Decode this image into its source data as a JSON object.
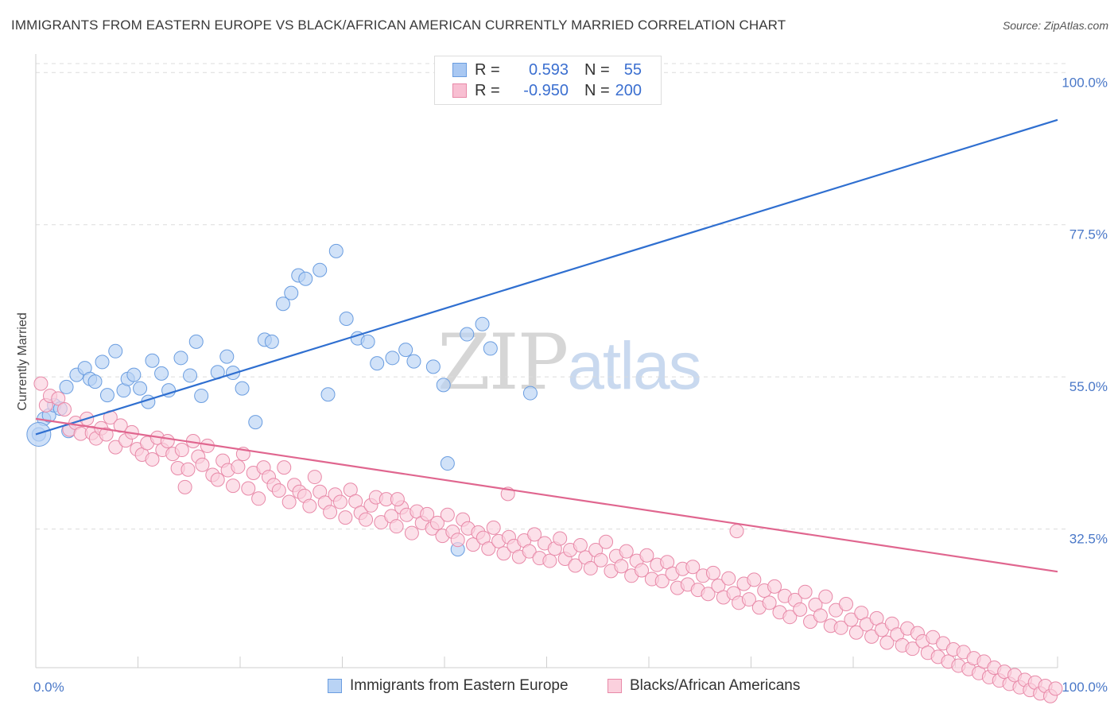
{
  "header": {
    "title": "IMMIGRANTS FROM EASTERN EUROPE VS BLACK/AFRICAN AMERICAN CURRENTLY MARRIED CORRELATION CHART",
    "source": "Source: ZipAtlas.com"
  },
  "watermark": {
    "part1": "ZIP",
    "part2": "atlas"
  },
  "legend_top": {
    "rows": [
      {
        "r_label": "R =",
        "r_value": "0.593",
        "n_label": "N =",
        "n_value": "55",
        "color": "#a9c8f2",
        "border": "#6a9de0"
      },
      {
        "r_label": "R =",
        "r_value": "-0.950",
        "n_label": "N =",
        "n_value": "200",
        "color": "#f8bfd2",
        "border": "#e889a8"
      }
    ]
  },
  "legend_bottom": {
    "items": [
      {
        "label": "Immigrants from Eastern Europe",
        "color": "#b9d3f5",
        "border": "#6a9de0"
      },
      {
        "label": "Blacks/African Americans",
        "color": "#fbd0dd",
        "border": "#e889a8"
      }
    ]
  },
  "chart_data": {
    "type": "scatter",
    "title": "IMMIGRANTS FROM EASTERN EUROPE VS BLACK/AFRICAN AMERICAN CURRENTLY MARRIED CORRELATION CHART",
    "xlabel": "",
    "ylabel": "Currently Married",
    "xlim": [
      0,
      100
    ],
    "ylim": [
      12,
      102.5
    ],
    "x_ticks": [
      "0.0%",
      "100.0%"
    ],
    "y_ticks": [
      {
        "value": 100.0,
        "label": "100.0%"
      },
      {
        "value": 77.5,
        "label": "77.5%"
      },
      {
        "value": 55.0,
        "label": "55.0%"
      },
      {
        "value": 32.5,
        "label": "32.5%"
      }
    ],
    "grid": true,
    "legend_position": "top-center",
    "series": [
      {
        "name": "Immigrants from Eastern Europe",
        "color": "#6a9de0",
        "fill": "#b9d3f5",
        "trend": {
          "x": [
            0,
            100
          ],
          "y": [
            46.5,
            93.0
          ],
          "color": "#2f6fd0"
        },
        "points": [
          [
            0.3,
            46.5
          ],
          [
            0.8,
            48.8
          ],
          [
            1.3,
            49.3
          ],
          [
            1.8,
            50.8
          ],
          [
            2.4,
            50.3
          ],
          [
            3.0,
            53.5
          ],
          [
            3.2,
            47.0
          ],
          [
            4.0,
            55.3
          ],
          [
            4.8,
            56.3
          ],
          [
            5.3,
            54.7
          ],
          [
            5.8,
            54.3
          ],
          [
            6.5,
            57.2
          ],
          [
            7.0,
            52.3
          ],
          [
            7.8,
            58.8
          ],
          [
            8.6,
            53.0
          ],
          [
            9.0,
            54.7
          ],
          [
            9.6,
            55.3
          ],
          [
            10.2,
            53.3
          ],
          [
            11.0,
            51.3
          ],
          [
            11.4,
            57.4
          ],
          [
            12.3,
            55.5
          ],
          [
            13.0,
            53.0
          ],
          [
            14.2,
            57.8
          ],
          [
            15.1,
            55.2
          ],
          [
            15.7,
            60.2
          ],
          [
            16.2,
            52.2
          ],
          [
            17.8,
            55.7
          ],
          [
            18.7,
            58.0
          ],
          [
            19.3,
            55.6
          ],
          [
            20.2,
            53.3
          ],
          [
            21.5,
            48.3
          ],
          [
            22.4,
            60.5
          ],
          [
            23.1,
            60.2
          ],
          [
            24.2,
            65.8
          ],
          [
            25.0,
            67.4
          ],
          [
            25.7,
            70.0
          ],
          [
            26.4,
            69.5
          ],
          [
            27.8,
            70.8
          ],
          [
            28.6,
            52.4
          ],
          [
            29.4,
            73.6
          ],
          [
            30.4,
            63.6
          ],
          [
            31.5,
            60.7
          ],
          [
            32.5,
            60.2
          ],
          [
            33.4,
            57.0
          ],
          [
            34.9,
            57.8
          ],
          [
            36.2,
            59.0
          ],
          [
            37.0,
            57.3
          ],
          [
            38.9,
            56.5
          ],
          [
            39.9,
            53.8
          ],
          [
            40.3,
            42.2
          ],
          [
            41.3,
            29.5
          ],
          [
            42.2,
            61.3
          ],
          [
            43.7,
            62.8
          ],
          [
            44.5,
            59.2
          ],
          [
            48.4,
            52.6
          ]
        ]
      },
      {
        "name": "Blacks/African Americans",
        "color": "#e889a8",
        "fill": "#fbd0dd",
        "trend": {
          "x": [
            0,
            100
          ],
          "y": [
            48.8,
            26.2
          ],
          "color": "#e0668f"
        },
        "points": [
          [
            0.5,
            54.0
          ],
          [
            1.0,
            50.8
          ],
          [
            1.4,
            52.2
          ],
          [
            2.2,
            51.8
          ],
          [
            2.8,
            50.2
          ],
          [
            3.3,
            47.2
          ],
          [
            3.9,
            48.2
          ],
          [
            4.4,
            46.6
          ],
          [
            5.0,
            48.8
          ],
          [
            5.5,
            46.7
          ],
          [
            5.9,
            45.9
          ],
          [
            6.4,
            47.4
          ],
          [
            6.9,
            46.5
          ],
          [
            7.3,
            49.0
          ],
          [
            7.8,
            44.6
          ],
          [
            8.3,
            47.8
          ],
          [
            8.8,
            45.6
          ],
          [
            9.4,
            46.8
          ],
          [
            9.9,
            44.3
          ],
          [
            10.4,
            43.5
          ],
          [
            10.9,
            45.2
          ],
          [
            11.4,
            42.8
          ],
          [
            11.9,
            46.0
          ],
          [
            12.4,
            44.2
          ],
          [
            12.9,
            45.5
          ],
          [
            13.4,
            43.6
          ],
          [
            13.9,
            41.5
          ],
          [
            14.3,
            44.2
          ],
          [
            14.9,
            41.3
          ],
          [
            15.4,
            45.5
          ],
          [
            15.9,
            43.2
          ],
          [
            16.3,
            42.0
          ],
          [
            16.8,
            44.8
          ],
          [
            17.3,
            40.5
          ],
          [
            17.8,
            39.8
          ],
          [
            18.3,
            42.6
          ],
          [
            18.8,
            41.2
          ],
          [
            19.3,
            38.9
          ],
          [
            19.8,
            41.7
          ],
          [
            20.3,
            43.6
          ],
          [
            20.8,
            38.5
          ],
          [
            21.3,
            40.8
          ],
          [
            21.8,
            37.0
          ],
          [
            22.3,
            41.6
          ],
          [
            22.8,
            40.2
          ],
          [
            23.3,
            39.0
          ],
          [
            23.8,
            38.2
          ],
          [
            24.3,
            41.6
          ],
          [
            24.8,
            36.5
          ],
          [
            25.3,
            39.0
          ],
          [
            25.8,
            38.0
          ],
          [
            26.3,
            37.4
          ],
          [
            26.8,
            35.9
          ],
          [
            27.3,
            40.2
          ],
          [
            27.8,
            38.0
          ],
          [
            28.3,
            36.4
          ],
          [
            28.8,
            35.0
          ],
          [
            29.3,
            37.6
          ],
          [
            29.8,
            36.5
          ],
          [
            30.3,
            34.2
          ],
          [
            30.8,
            38.3
          ],
          [
            31.3,
            36.6
          ],
          [
            31.8,
            34.9
          ],
          [
            32.3,
            33.9
          ],
          [
            32.8,
            36.0
          ],
          [
            33.3,
            37.2
          ],
          [
            33.8,
            33.5
          ],
          [
            34.3,
            36.9
          ],
          [
            34.8,
            34.4
          ],
          [
            35.3,
            32.9
          ],
          [
            35.8,
            35.7
          ],
          [
            36.3,
            34.6
          ],
          [
            36.8,
            31.9
          ],
          [
            37.3,
            35.1
          ],
          [
            37.8,
            33.4
          ],
          [
            38.3,
            34.7
          ],
          [
            38.8,
            32.6
          ],
          [
            39.3,
            33.4
          ],
          [
            39.8,
            31.5
          ],
          [
            40.3,
            34.6
          ],
          [
            40.8,
            32.1
          ],
          [
            41.3,
            30.9
          ],
          [
            41.8,
            33.9
          ],
          [
            42.3,
            32.6
          ],
          [
            42.8,
            30.2
          ],
          [
            43.3,
            32.0
          ],
          [
            43.8,
            31.2
          ],
          [
            44.3,
            29.6
          ],
          [
            44.8,
            32.7
          ],
          [
            45.3,
            30.7
          ],
          [
            45.8,
            28.9
          ],
          [
            46.3,
            31.3
          ],
          [
            46.8,
            30.0
          ],
          [
            47.3,
            28.4
          ],
          [
            47.8,
            30.8
          ],
          [
            48.3,
            29.2
          ],
          [
            48.8,
            31.7
          ],
          [
            49.3,
            28.2
          ],
          [
            49.8,
            30.4
          ],
          [
            50.3,
            27.8
          ],
          [
            50.8,
            29.6
          ],
          [
            51.3,
            31.1
          ],
          [
            51.8,
            28.1
          ],
          [
            52.3,
            29.4
          ],
          [
            52.8,
            27.1
          ],
          [
            53.3,
            30.1
          ],
          [
            53.8,
            28.3
          ],
          [
            54.3,
            26.7
          ],
          [
            54.8,
            29.4
          ],
          [
            55.3,
            27.9
          ],
          [
            55.8,
            30.6
          ],
          [
            56.3,
            26.3
          ],
          [
            56.8,
            28.5
          ],
          [
            57.3,
            27.0
          ],
          [
            57.8,
            29.2
          ],
          [
            58.3,
            25.6
          ],
          [
            58.8,
            27.8
          ],
          [
            59.3,
            26.4
          ],
          [
            59.8,
            28.6
          ],
          [
            60.3,
            25.1
          ],
          [
            60.8,
            27.2
          ],
          [
            61.3,
            24.8
          ],
          [
            61.8,
            27.6
          ],
          [
            62.3,
            25.9
          ],
          [
            62.8,
            23.8
          ],
          [
            63.3,
            26.6
          ],
          [
            63.8,
            24.3
          ],
          [
            64.3,
            26.9
          ],
          [
            64.8,
            23.5
          ],
          [
            65.3,
            25.6
          ],
          [
            65.8,
            22.9
          ],
          [
            66.3,
            26.0
          ],
          [
            66.8,
            24.1
          ],
          [
            67.3,
            22.4
          ],
          [
            67.8,
            25.2
          ],
          [
            68.3,
            23.0
          ],
          [
            68.8,
            21.6
          ],
          [
            69.3,
            24.4
          ],
          [
            69.8,
            22.1
          ],
          [
            70.3,
            25.0
          ],
          [
            70.8,
            20.9
          ],
          [
            71.3,
            23.4
          ],
          [
            71.8,
            21.6
          ],
          [
            72.3,
            24.0
          ],
          [
            72.8,
            20.2
          ],
          [
            73.3,
            22.6
          ],
          [
            73.8,
            19.5
          ],
          [
            74.3,
            22.0
          ],
          [
            74.8,
            20.6
          ],
          [
            75.3,
            23.2
          ],
          [
            75.8,
            18.8
          ],
          [
            76.3,
            21.3
          ],
          [
            76.8,
            19.7
          ],
          [
            77.3,
            22.5
          ],
          [
            77.8,
            18.2
          ],
          [
            78.3,
            20.5
          ],
          [
            78.8,
            17.9
          ],
          [
            79.3,
            21.4
          ],
          [
            79.8,
            19.1
          ],
          [
            80.3,
            17.2
          ],
          [
            80.8,
            20.1
          ],
          [
            81.3,
            18.4
          ],
          [
            81.8,
            16.6
          ],
          [
            82.3,
            19.3
          ],
          [
            82.8,
            17.6
          ],
          [
            83.3,
            15.7
          ],
          [
            83.8,
            18.5
          ],
          [
            84.3,
            16.9
          ],
          [
            84.8,
            15.3
          ],
          [
            85.3,
            17.8
          ],
          [
            85.8,
            14.8
          ],
          [
            86.3,
            17.1
          ],
          [
            86.8,
            15.9
          ],
          [
            87.3,
            14.2
          ],
          [
            87.8,
            16.5
          ],
          [
            88.3,
            13.6
          ],
          [
            88.8,
            15.6
          ],
          [
            89.3,
            12.9
          ],
          [
            89.8,
            14.7
          ],
          [
            90.3,
            12.3
          ],
          [
            90.8,
            14.3
          ],
          [
            91.3,
            11.8
          ],
          [
            91.8,
            13.4
          ],
          [
            92.3,
            11.2
          ],
          [
            92.8,
            12.9
          ],
          [
            93.3,
            10.6
          ],
          [
            93.8,
            12.0
          ],
          [
            94.3,
            10.1
          ],
          [
            94.8,
            11.4
          ],
          [
            95.3,
            9.6
          ],
          [
            95.8,
            10.9
          ],
          [
            96.3,
            9.1
          ],
          [
            96.8,
            10.2
          ],
          [
            97.3,
            8.7
          ],
          [
            97.8,
            9.8
          ],
          [
            98.3,
            8.2
          ],
          [
            98.8,
            9.3
          ],
          [
            99.3,
            7.8
          ],
          [
            99.8,
            8.9
          ],
          [
            14.6,
            38.7
          ],
          [
            35.4,
            36.9
          ],
          [
            46.2,
            37.7
          ],
          [
            68.6,
            32.2
          ]
        ]
      }
    ]
  }
}
